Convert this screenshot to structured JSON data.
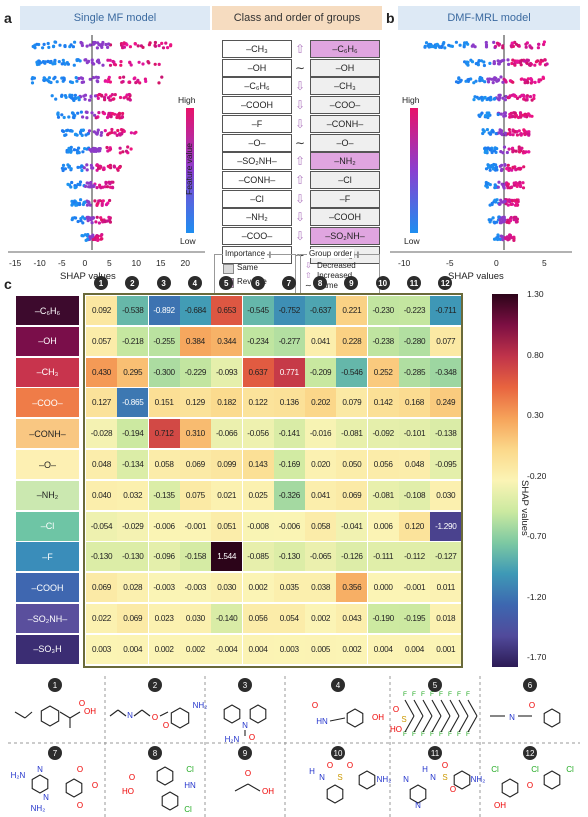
{
  "panel_labels": {
    "a": "a",
    "b": "b",
    "c": "c"
  },
  "headers": {
    "single": "Single MF model",
    "class_order": "Class and order of groups",
    "dmf": "DMF-MRL model"
  },
  "left_groups": [
    "–CH₃",
    "–OH",
    "–C₆H₆",
    "–COOH",
    "–F",
    "–O–",
    "–SO₂NH–",
    "–CONH–",
    "–Cl",
    "–NH₂",
    "–COO–",
    "–SO₃H"
  ],
  "right_groups": [
    "–C₆H₆",
    "–OH",
    "–CH₃",
    "–COO–",
    "–CONH–",
    "–O–",
    "–NH₂",
    "–Cl",
    "–F",
    "–COOH",
    "–SO₂NH–",
    "–SO₃H"
  ],
  "right_highlight": [
    true,
    false,
    false,
    false,
    false,
    false,
    true,
    false,
    false,
    false,
    true,
    false
  ],
  "order_marks": [
    "increase",
    "same",
    "decrease",
    "decrease",
    "decrease",
    "same",
    "increase",
    "increase",
    "decrease",
    "decrease",
    "decrease",
    "same"
  ],
  "feature_value": {
    "high": "High",
    "low": "Low",
    "label": "Feature value"
  },
  "shap_axis_label": "SHAP values",
  "left_ticks": [
    "-15",
    "-10",
    "-5",
    "0",
    "5",
    "10",
    "15",
    "20"
  ],
  "right_ticks": [
    "-10",
    "-5",
    "0",
    "5"
  ],
  "legend": {
    "importance": "Importance",
    "same": "Same",
    "reverse": "Reverse",
    "group_order": "Group order",
    "decreased": "Decreased",
    "increased": "Increased",
    "same2": "Same"
  },
  "heatmap": {
    "rows": [
      "–C₆H₆",
      "–OH",
      "–CH₃",
      "–COO–",
      "–CONH–",
      "–O–",
      "–NH₂",
      "–Cl",
      "–F",
      "–COOH",
      "–SO₂NH–",
      "–SO₃H"
    ],
    "row_colors": [
      "#3d0a2d",
      "#7a0e4a",
      "#c8344d",
      "#ef7c48",
      "#f9c782",
      "#fdf0b3",
      "#cbe8b0",
      "#6ec5a5",
      "#3a8dba",
      "#3f67b0",
      "#5a4f9d",
      "#3b2d73"
    ],
    "row_text_dark": [
      false,
      false,
      false,
      false,
      false,
      false,
      false,
      false,
      false,
      false,
      false,
      false
    ],
    "cols": [
      "1",
      "2",
      "3",
      "4",
      "5",
      "6",
      "7",
      "8",
      "9",
      "10",
      "11",
      "12"
    ],
    "values": [
      [
        "0.092",
        "-0.538",
        "-0.892",
        "-0.684",
        "0.653",
        "-0.545",
        "-0.752",
        "-0.637",
        "0.221",
        "-0.230",
        "-0.223",
        "-0.711"
      ],
      [
        "0.057",
        "-0.218",
        "-0.255",
        "0.384",
        "0.344",
        "-0.234",
        "-0.277",
        "0.041",
        "0.228",
        "-0.238",
        "-0.280",
        "0.077"
      ],
      [
        "0.430",
        "0.295",
        "-0.300",
        "-0.229",
        "-0.093",
        "0.637",
        "0.771",
        "-0.209",
        "-0.546",
        "0.252",
        "-0.285",
        "-0.348"
      ],
      [
        "0.127",
        "-0.865",
        "0.151",
        "0.129",
        "0.182",
        "0.122",
        "0.136",
        "0.202",
        "0.079",
        "0.142",
        "0.168",
        "0.249"
      ],
      [
        "-0.028",
        "-0.194",
        "0.712",
        "0.310",
        "-0.066",
        "-0.056",
        "-0.141",
        "-0.016",
        "-0.081",
        "-0.092",
        "-0.101",
        "-0.138"
      ],
      [
        "0.048",
        "-0.134",
        "0.058",
        "0.069",
        "0.099",
        "0.143",
        "-0.169",
        "0.020",
        "0.050",
        "0.056",
        "0.048",
        "-0.095"
      ],
      [
        "0.040",
        "0.032",
        "-0.135",
        "0.075",
        "0.021",
        "0.025",
        "-0.326",
        "0.041",
        "0.069",
        "-0.081",
        "-0.108",
        "0.030"
      ],
      [
        "-0.054",
        "-0.029",
        "-0.006",
        "-0.001",
        "0.051",
        "-0.008",
        "-0.006",
        "0.058",
        "-0.041",
        "0.006",
        "0.120",
        "-1.290"
      ],
      [
        "-0.130",
        "-0.130",
        "-0.096",
        "-0.158",
        "1.544",
        "-0.085",
        "-0.130",
        "-0.065",
        "-0.126",
        "-0.111",
        "-0.112",
        "-0.127"
      ],
      [
        "0.069",
        "0.028",
        "-0.003",
        "-0.003",
        "0.030",
        "0.002",
        "0.035",
        "0.038",
        "0.356",
        "0.000",
        "-0.001",
        "0.011"
      ],
      [
        "0.022",
        "0.069",
        "0.023",
        "0.030",
        "-0.140",
        "0.056",
        "0.054",
        "0.002",
        "0.043",
        "-0.190",
        "-0.195",
        "0.018"
      ],
      [
        "0.003",
        "0.004",
        "0.002",
        "0.002",
        "-0.004",
        "0.004",
        "0.003",
        "0.005",
        "0.002",
        "0.004",
        "0.004",
        "0.001"
      ]
    ],
    "colorbar_ticks": [
      "1.30",
      "0.80",
      "0.30",
      "-0.20",
      "-0.70",
      "-1.20",
      "-1.70"
    ],
    "colorbar_label": "SHAP values",
    "vmin": -1.7,
    "vmax": 1.3
  },
  "molecule_numbers": [
    "1",
    "2",
    "3",
    "4",
    "5",
    "6",
    "7",
    "8",
    "9",
    "10",
    "11",
    "12"
  ],
  "molecule_atoms": {
    "m1": [
      "OH",
      "O"
    ],
    "m2": [
      "N",
      "O",
      "O",
      "NH₂"
    ],
    "m3": [
      "N",
      "O",
      "H₂N"
    ],
    "m4": [
      "O",
      "HN",
      "OH"
    ],
    "m5": [
      "F",
      "O",
      "S",
      "HO",
      "O"
    ],
    "m6": [
      "N",
      "O",
      "N"
    ],
    "m7": [
      "H₂N",
      "N",
      "N",
      "NH₂",
      "O",
      "O",
      "O"
    ],
    "m8": [
      "HO",
      "O",
      "HN",
      "Cl",
      "Cl"
    ],
    "m9": [
      "O",
      "OH"
    ],
    "m10": [
      "H",
      "N",
      "O",
      "S",
      "O",
      "N",
      "N",
      "NH₂"
    ],
    "m11": [
      "N",
      "N",
      "H",
      "N",
      "O",
      "S",
      "O",
      "NH₂"
    ],
    "m12": [
      "Cl",
      "Cl",
      "Cl",
      "OH",
      "O"
    ]
  },
  "colors": {
    "accent": "#e7c9a0",
    "header_a": "#dce9f5",
    "header_mid": "#f7dcc0",
    "highlight": "#e0a5e0"
  }
}
